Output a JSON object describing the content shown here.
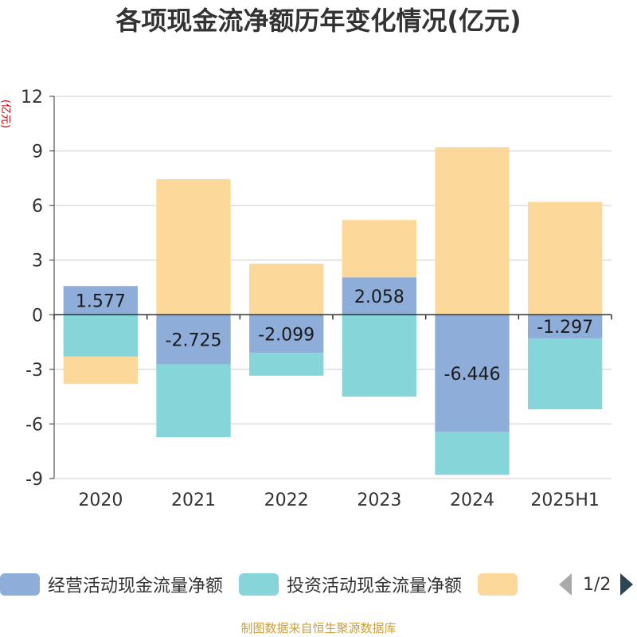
{
  "title": "各项现金流净额历年变化情况(亿元)",
  "unit_label": "(亿元)",
  "source": "制图数据来自恒生聚源数据库",
  "legend": {
    "items": [
      {
        "label": "经营活动现金流量净额",
        "color": "#8eaed9"
      },
      {
        "label": "投资活动现金流量净额",
        "color": "#86d5d8"
      },
      {
        "label": "",
        "color": "#fdd89b"
      }
    ],
    "page_indicator": "1/2"
  },
  "chart_data": {
    "type": "bar",
    "stacked": true,
    "categories": [
      "2020",
      "2021",
      "2022",
      "2023",
      "2024",
      "2025H1"
    ],
    "ylim": [
      -9,
      12
    ],
    "yticks": [
      -9,
      -6,
      -3,
      0,
      3,
      6,
      9,
      12
    ],
    "grid": true,
    "legend_position": "bottom",
    "series": [
      {
        "name": "经营活动现金流量净额",
        "color": "#8eaed9",
        "values": [
          1.577,
          -2.725,
          -2.099,
          2.058,
          -6.446,
          -1.297
        ],
        "labels": [
          "1.577",
          "-2.725",
          "-2.099",
          "2.058",
          "-6.446",
          "-1.297"
        ]
      },
      {
        "name": "投资活动现金流量净额",
        "color": "#86d5d8",
        "values": [
          -2.3,
          -4.0,
          -1.25,
          -4.5,
          -2.35,
          -3.9
        ]
      },
      {
        "color": "#fdd89b",
        "values": [
          -1.5,
          7.45,
          2.8,
          3.15,
          9.2,
          6.2
        ]
      }
    ]
  }
}
